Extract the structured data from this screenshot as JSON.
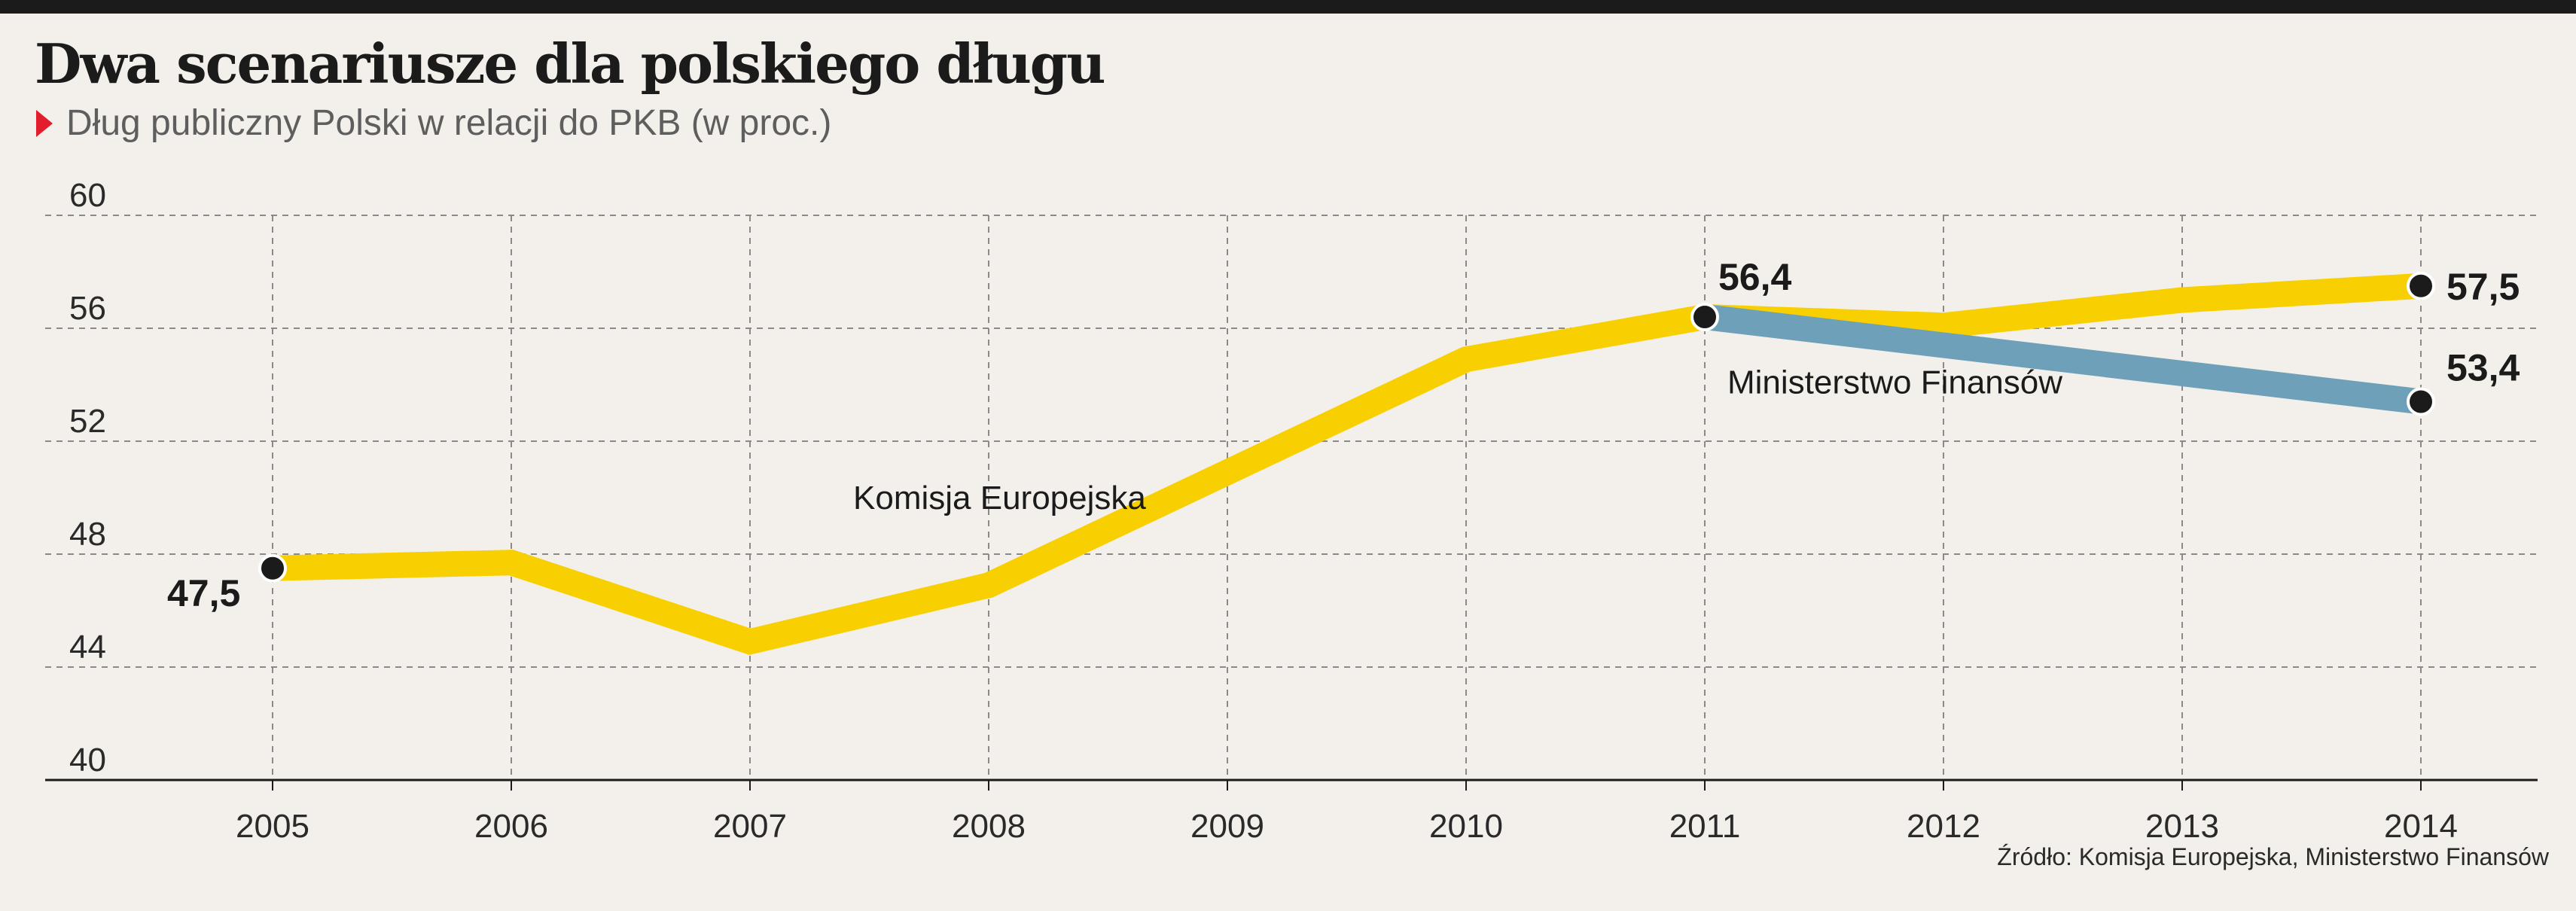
{
  "header": {
    "title": "Dwa scenariusze dla polskiego długu",
    "subtitle": "Dług publiczny Polski w relacji do PKB (w proc.)"
  },
  "source": "Źródło: Komisja Europejska, Ministerstwo Finansów",
  "colors": {
    "background": "#f3f0eb",
    "komisja": "#f8cf00",
    "ministerstwo": "#6ea1b9",
    "marker": "#e31d2b",
    "dot": "#1b1b1b",
    "grid": "#8a8a8a"
  },
  "chart_data": {
    "type": "line",
    "title": "Dwa scenariusze dla polskiego długu",
    "subtitle": "Dług publiczny Polski w relacji do PKB (w proc.)",
    "x": [
      "2005",
      "2006",
      "2007",
      "2008",
      "2009",
      "2010",
      "2011",
      "2012",
      "2013",
      "2014"
    ],
    "ylim": [
      40,
      60
    ],
    "yticks": [
      40,
      44,
      48,
      52,
      56,
      60
    ],
    "grid": true,
    "series": [
      {
        "name": "Komisja Europejska",
        "color": "#f8cf00",
        "x": [
          "2005",
          "2006",
          "2007",
          "2008",
          "2009",
          "2010",
          "2011",
          "2012",
          "2013",
          "2014"
        ],
        "values": [
          47.5,
          47.7,
          44.9,
          46.9,
          50.9,
          54.9,
          56.4,
          56.1,
          57.0,
          57.5
        ]
      },
      {
        "name": "Ministerstwo Finansów",
        "color": "#6ea1b9",
        "x": [
          "2011",
          "2012",
          "2013",
          "2014"
        ],
        "values": [
          56.4,
          55.4,
          54.4,
          53.4
        ]
      }
    ],
    "annotations": [
      {
        "text": "47,5",
        "x": "2005",
        "y": 47.5
      },
      {
        "text": "56,4",
        "x": "2011",
        "y": 56.4
      },
      {
        "text": "57,5",
        "x": "2014",
        "y": 57.5
      },
      {
        "text": "53,4",
        "x": "2014",
        "y": 53.4
      }
    ]
  }
}
